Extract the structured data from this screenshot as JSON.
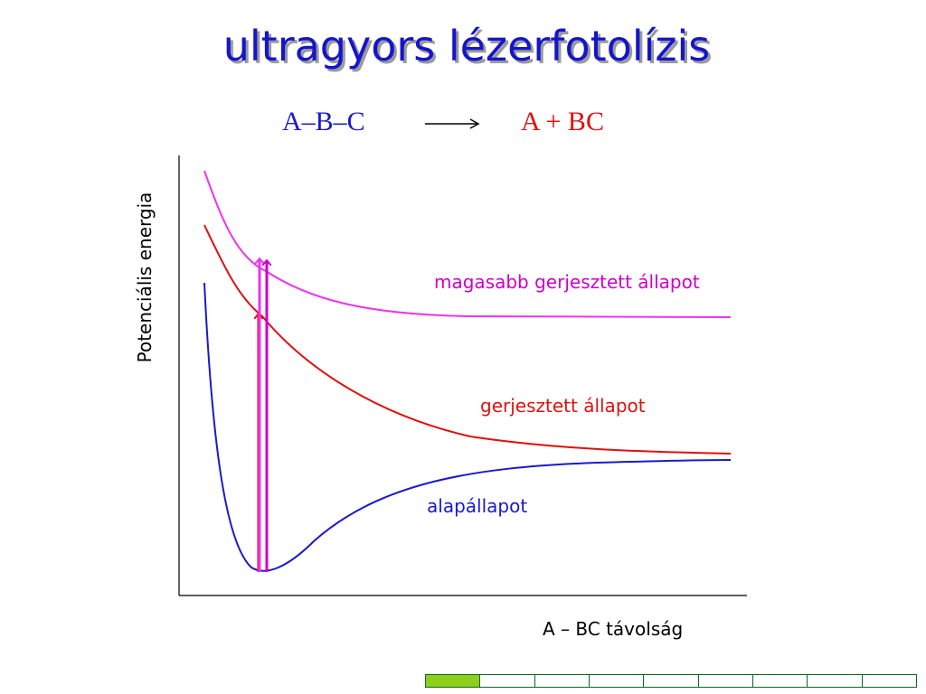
{
  "slide": {
    "title": "ultragyors lézerfotolízis",
    "reaction": {
      "reactant": "A–B–C",
      "product": "A + BC"
    }
  },
  "diagram": {
    "y_axis_label": "Potenciális energia",
    "x_axis_label": "A – BC távolság",
    "curves": [
      {
        "name": "alapállapot",
        "color": "#1a1acc",
        "kind": "morse-well"
      },
      {
        "name": "gerjesztett állapot",
        "color": "#e01010",
        "kind": "repulsive"
      },
      {
        "name": "magasabb gerjesztett állapot",
        "color": "#ee33ee",
        "kind": "repulsive"
      }
    ],
    "excitation_arrows": [
      {
        "from": "alapállapot",
        "to": "gerjesztett állapot",
        "color": "#e01010"
      },
      {
        "from": "alapállapot",
        "to": "magasabb gerjesztett állapot",
        "color": "#ee33ee"
      },
      {
        "from": "alapállapot",
        "to": "magasabb gerjesztett állapot",
        "color": "#cc00cc"
      }
    ]
  },
  "progress": {
    "total_steps": 9,
    "completed_steps": 1,
    "accent": "#8fce1a",
    "border": "#0a6b22"
  }
}
